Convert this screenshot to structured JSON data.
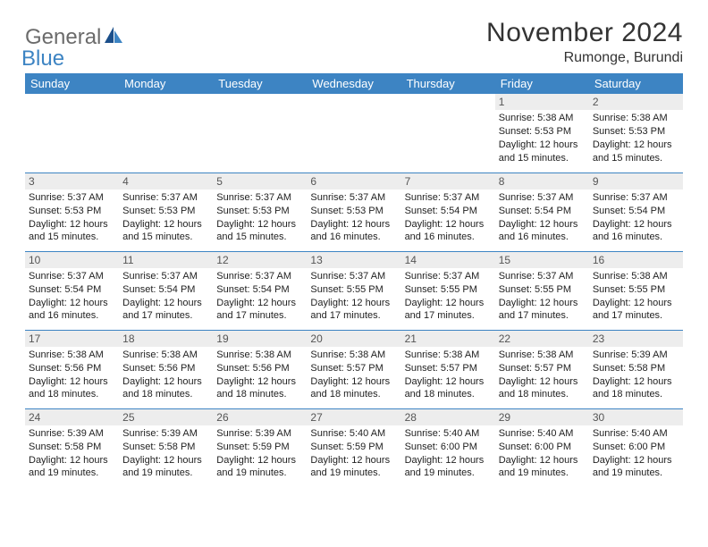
{
  "logo": {
    "text1": "General",
    "text2": "Blue"
  },
  "header": {
    "month_year": "November 2024",
    "location": "Rumonge, Burundi"
  },
  "colors": {
    "header_bg": "#3d84c3",
    "header_fg": "#ffffff",
    "daynum_bg": "#ededed",
    "rule": "#3d84c3",
    "logo_gray": "#6b6b6b",
    "logo_blue": "#3d84c3"
  },
  "weekdays": [
    "Sunday",
    "Monday",
    "Tuesday",
    "Wednesday",
    "Thursday",
    "Friday",
    "Saturday"
  ],
  "weeks": [
    [
      null,
      null,
      null,
      null,
      null,
      {
        "day": "1",
        "sunrise": "Sunrise: 5:38 AM",
        "sunset": "Sunset: 5:53 PM",
        "daylight1": "Daylight: 12 hours",
        "daylight2": "and 15 minutes."
      },
      {
        "day": "2",
        "sunrise": "Sunrise: 5:38 AM",
        "sunset": "Sunset: 5:53 PM",
        "daylight1": "Daylight: 12 hours",
        "daylight2": "and 15 minutes."
      }
    ],
    [
      {
        "day": "3",
        "sunrise": "Sunrise: 5:37 AM",
        "sunset": "Sunset: 5:53 PM",
        "daylight1": "Daylight: 12 hours",
        "daylight2": "and 15 minutes."
      },
      {
        "day": "4",
        "sunrise": "Sunrise: 5:37 AM",
        "sunset": "Sunset: 5:53 PM",
        "daylight1": "Daylight: 12 hours",
        "daylight2": "and 15 minutes."
      },
      {
        "day": "5",
        "sunrise": "Sunrise: 5:37 AM",
        "sunset": "Sunset: 5:53 PM",
        "daylight1": "Daylight: 12 hours",
        "daylight2": "and 15 minutes."
      },
      {
        "day": "6",
        "sunrise": "Sunrise: 5:37 AM",
        "sunset": "Sunset: 5:53 PM",
        "daylight1": "Daylight: 12 hours",
        "daylight2": "and 16 minutes."
      },
      {
        "day": "7",
        "sunrise": "Sunrise: 5:37 AM",
        "sunset": "Sunset: 5:54 PM",
        "daylight1": "Daylight: 12 hours",
        "daylight2": "and 16 minutes."
      },
      {
        "day": "8",
        "sunrise": "Sunrise: 5:37 AM",
        "sunset": "Sunset: 5:54 PM",
        "daylight1": "Daylight: 12 hours",
        "daylight2": "and 16 minutes."
      },
      {
        "day": "9",
        "sunrise": "Sunrise: 5:37 AM",
        "sunset": "Sunset: 5:54 PM",
        "daylight1": "Daylight: 12 hours",
        "daylight2": "and 16 minutes."
      }
    ],
    [
      {
        "day": "10",
        "sunrise": "Sunrise: 5:37 AM",
        "sunset": "Sunset: 5:54 PM",
        "daylight1": "Daylight: 12 hours",
        "daylight2": "and 16 minutes."
      },
      {
        "day": "11",
        "sunrise": "Sunrise: 5:37 AM",
        "sunset": "Sunset: 5:54 PM",
        "daylight1": "Daylight: 12 hours",
        "daylight2": "and 17 minutes."
      },
      {
        "day": "12",
        "sunrise": "Sunrise: 5:37 AM",
        "sunset": "Sunset: 5:54 PM",
        "daylight1": "Daylight: 12 hours",
        "daylight2": "and 17 minutes."
      },
      {
        "day": "13",
        "sunrise": "Sunrise: 5:37 AM",
        "sunset": "Sunset: 5:55 PM",
        "daylight1": "Daylight: 12 hours",
        "daylight2": "and 17 minutes."
      },
      {
        "day": "14",
        "sunrise": "Sunrise: 5:37 AM",
        "sunset": "Sunset: 5:55 PM",
        "daylight1": "Daylight: 12 hours",
        "daylight2": "and 17 minutes."
      },
      {
        "day": "15",
        "sunrise": "Sunrise: 5:37 AM",
        "sunset": "Sunset: 5:55 PM",
        "daylight1": "Daylight: 12 hours",
        "daylight2": "and 17 minutes."
      },
      {
        "day": "16",
        "sunrise": "Sunrise: 5:38 AM",
        "sunset": "Sunset: 5:55 PM",
        "daylight1": "Daylight: 12 hours",
        "daylight2": "and 17 minutes."
      }
    ],
    [
      {
        "day": "17",
        "sunrise": "Sunrise: 5:38 AM",
        "sunset": "Sunset: 5:56 PM",
        "daylight1": "Daylight: 12 hours",
        "daylight2": "and 18 minutes."
      },
      {
        "day": "18",
        "sunrise": "Sunrise: 5:38 AM",
        "sunset": "Sunset: 5:56 PM",
        "daylight1": "Daylight: 12 hours",
        "daylight2": "and 18 minutes."
      },
      {
        "day": "19",
        "sunrise": "Sunrise: 5:38 AM",
        "sunset": "Sunset: 5:56 PM",
        "daylight1": "Daylight: 12 hours",
        "daylight2": "and 18 minutes."
      },
      {
        "day": "20",
        "sunrise": "Sunrise: 5:38 AM",
        "sunset": "Sunset: 5:57 PM",
        "daylight1": "Daylight: 12 hours",
        "daylight2": "and 18 minutes."
      },
      {
        "day": "21",
        "sunrise": "Sunrise: 5:38 AM",
        "sunset": "Sunset: 5:57 PM",
        "daylight1": "Daylight: 12 hours",
        "daylight2": "and 18 minutes."
      },
      {
        "day": "22",
        "sunrise": "Sunrise: 5:38 AM",
        "sunset": "Sunset: 5:57 PM",
        "daylight1": "Daylight: 12 hours",
        "daylight2": "and 18 minutes."
      },
      {
        "day": "23",
        "sunrise": "Sunrise: 5:39 AM",
        "sunset": "Sunset: 5:58 PM",
        "daylight1": "Daylight: 12 hours",
        "daylight2": "and 18 minutes."
      }
    ],
    [
      {
        "day": "24",
        "sunrise": "Sunrise: 5:39 AM",
        "sunset": "Sunset: 5:58 PM",
        "daylight1": "Daylight: 12 hours",
        "daylight2": "and 19 minutes."
      },
      {
        "day": "25",
        "sunrise": "Sunrise: 5:39 AM",
        "sunset": "Sunset: 5:58 PM",
        "daylight1": "Daylight: 12 hours",
        "daylight2": "and 19 minutes."
      },
      {
        "day": "26",
        "sunrise": "Sunrise: 5:39 AM",
        "sunset": "Sunset: 5:59 PM",
        "daylight1": "Daylight: 12 hours",
        "daylight2": "and 19 minutes."
      },
      {
        "day": "27",
        "sunrise": "Sunrise: 5:40 AM",
        "sunset": "Sunset: 5:59 PM",
        "daylight1": "Daylight: 12 hours",
        "daylight2": "and 19 minutes."
      },
      {
        "day": "28",
        "sunrise": "Sunrise: 5:40 AM",
        "sunset": "Sunset: 6:00 PM",
        "daylight1": "Daylight: 12 hours",
        "daylight2": "and 19 minutes."
      },
      {
        "day": "29",
        "sunrise": "Sunrise: 5:40 AM",
        "sunset": "Sunset: 6:00 PM",
        "daylight1": "Daylight: 12 hours",
        "daylight2": "and 19 minutes."
      },
      {
        "day": "30",
        "sunrise": "Sunrise: 5:40 AM",
        "sunset": "Sunset: 6:00 PM",
        "daylight1": "Daylight: 12 hours",
        "daylight2": "and 19 minutes."
      }
    ]
  ]
}
